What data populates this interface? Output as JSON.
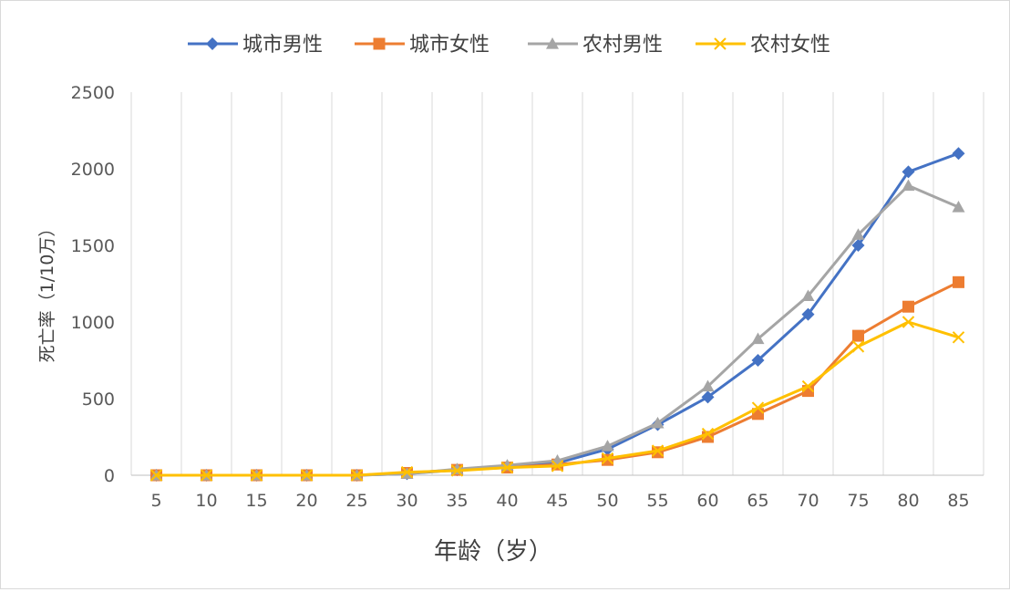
{
  "chart_data": {
    "type": "line",
    "title": "",
    "xlabel": "年龄（岁）",
    "ylabel": "死亡率（1/10万）",
    "categories": [
      "5",
      "10",
      "15",
      "20",
      "25",
      "30",
      "35",
      "40",
      "45",
      "50",
      "55",
      "60",
      "65",
      "70",
      "75",
      "80",
      "85"
    ],
    "ylim": [
      0,
      2500
    ],
    "yticks": [
      "0",
      "500",
      "1000",
      "1500",
      "2000",
      "2500"
    ],
    "grid": "vertical",
    "legend": "top-center",
    "series": [
      {
        "name": "城市男性",
        "color": "#4472c4",
        "marker": "diamond",
        "values": [
          0,
          0,
          0,
          0,
          0,
          10,
          35,
          55,
          80,
          170,
          330,
          510,
          750,
          1050,
          1500,
          1980,
          2100
        ]
      },
      {
        "name": "城市女性",
        "color": "#ed7d31",
        "marker": "square",
        "values": [
          0,
          0,
          0,
          0,
          0,
          15,
          35,
          50,
          70,
          100,
          150,
          250,
          400,
          550,
          910,
          1100,
          1260
        ]
      },
      {
        "name": "农村男性",
        "color": "#a5a5a5",
        "marker": "triangle",
        "values": [
          0,
          0,
          0,
          0,
          0,
          10,
          40,
          65,
          95,
          190,
          340,
          580,
          890,
          1170,
          1570,
          1890,
          1750
        ]
      },
      {
        "name": "农村女性",
        "color": "#ffc000",
        "marker": "x",
        "values": [
          0,
          0,
          0,
          0,
          0,
          20,
          30,
          50,
          60,
          110,
          160,
          270,
          440,
          580,
          840,
          1000,
          900
        ]
      }
    ]
  }
}
